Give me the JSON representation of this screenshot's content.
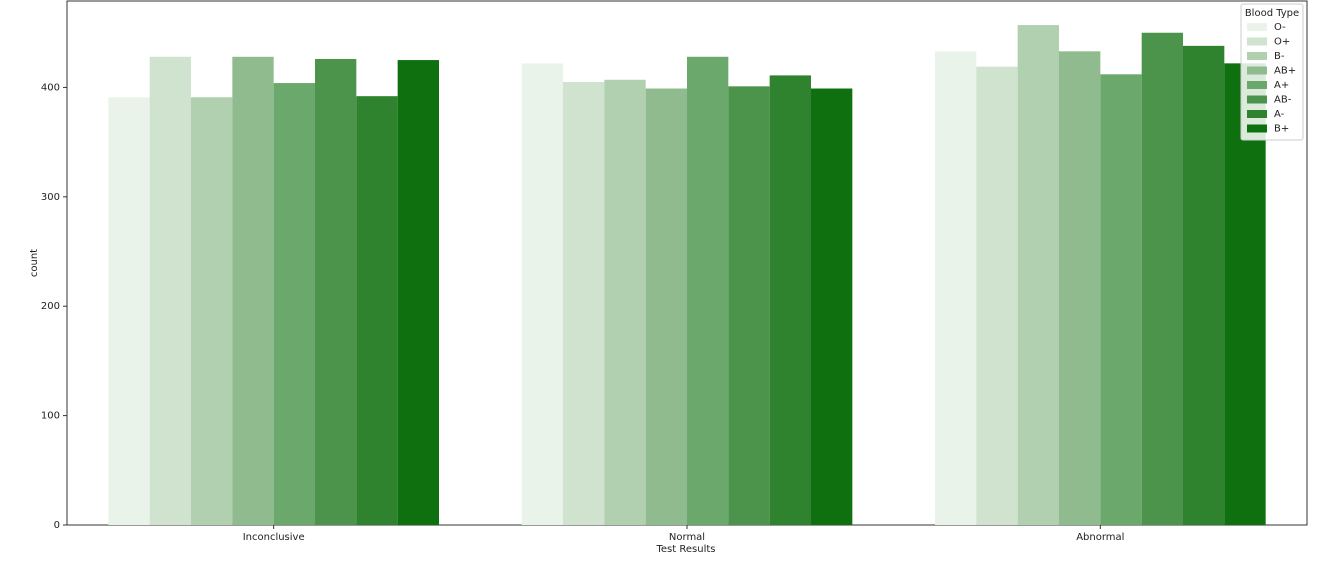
{
  "chart_data": {
    "type": "bar",
    "x_label": "Test Results",
    "y_label": "count",
    "legend_title": "Blood Type",
    "legend_position": "upper right",
    "categories": [
      "Inconclusive",
      "Normal",
      "Abnormal"
    ],
    "series": [
      {
        "name": "O-",
        "color": "#eaf3ea",
        "values": [
          391,
          422,
          433
        ]
      },
      {
        "name": "O+",
        "color": "#cfe3cf",
        "values": [
          428,
          405,
          419
        ]
      },
      {
        "name": "B-",
        "color": "#b0d0b0",
        "values": [
          391,
          407,
          457
        ]
      },
      {
        "name": "AB+",
        "color": "#8fbb8f",
        "values": [
          428,
          399,
          433
        ]
      },
      {
        "name": "A+",
        "color": "#6ba86b",
        "values": [
          404,
          428,
          412
        ]
      },
      {
        "name": "AB-",
        "color": "#4c944c",
        "values": [
          426,
          401,
          450
        ]
      },
      {
        "name": "A-",
        "color": "#2f832f",
        "values": [
          392,
          411,
          438
        ]
      },
      {
        "name": "B+",
        "color": "#0e700e",
        "values": [
          425,
          399,
          422
        ]
      }
    ],
    "ylim": [
      0,
      479
    ],
    "yticks": [
      0,
      100,
      200,
      300,
      400
    ],
    "grid": false
  }
}
